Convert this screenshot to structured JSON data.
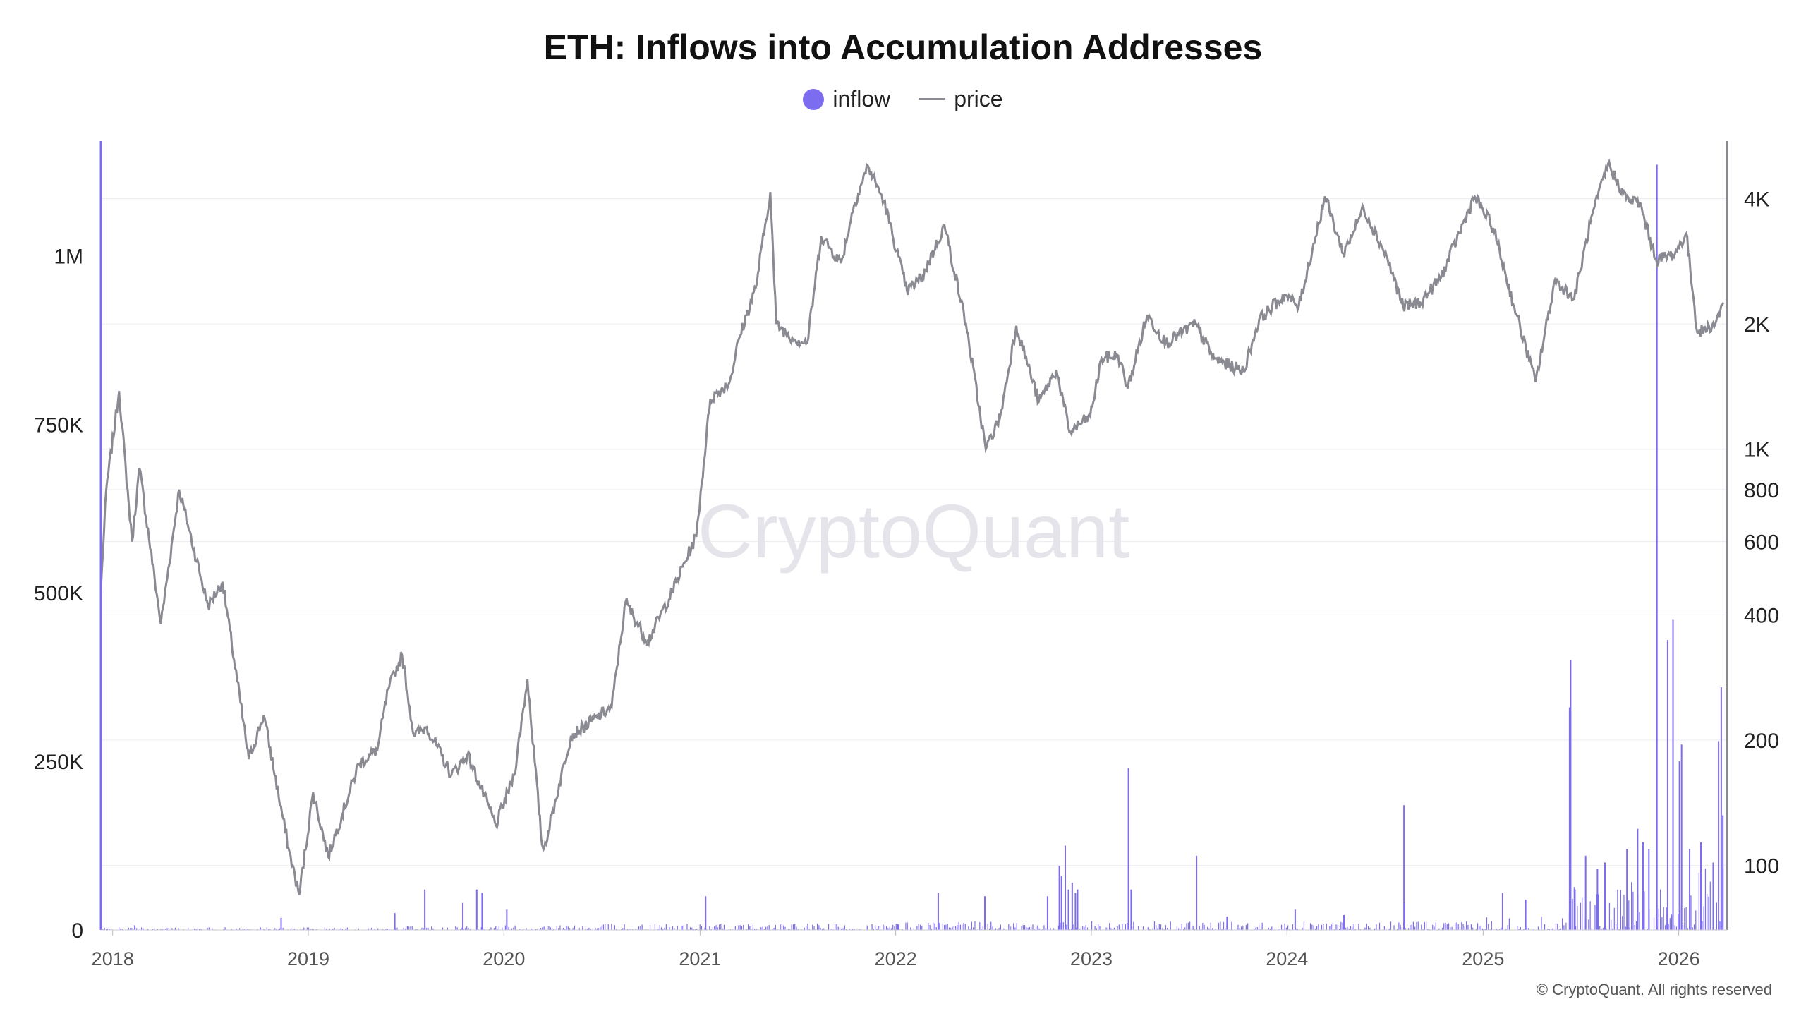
{
  "chart_data": {
    "type": "bar+line",
    "title": "ETH: Inflows into Accumulation Addresses",
    "watermark": "CryptoQuant",
    "footer": "© CryptoQuant. All rights reserved",
    "legend": {
      "placement": "top-center",
      "items": [
        {
          "name": "inflow",
          "type": "bar",
          "color": "#7b6cf0"
        },
        {
          "name": "price",
          "type": "line",
          "color": "#8a8a93"
        }
      ]
    },
    "x_axis": {
      "type": "date",
      "range": [
        "2017-12-10",
        "2026-04-01"
      ],
      "ticks": [
        {
          "date": "2018-01-01",
          "label": "2018"
        },
        {
          "date": "2019-01-01",
          "label": "2019"
        },
        {
          "date": "2020-01-01",
          "label": "2020"
        },
        {
          "date": "2021-01-01",
          "label": "2021"
        },
        {
          "date": "2022-01-01",
          "label": "2022"
        },
        {
          "date": "2023-01-01",
          "label": "2023"
        },
        {
          "date": "2024-01-01",
          "label": "2024"
        },
        {
          "date": "2025-01-01",
          "label": "2025"
        },
        {
          "date": "2026-01-01",
          "label": "2026"
        }
      ]
    },
    "y_left": {
      "name": "inflow",
      "range": [
        0,
        1170000
      ],
      "ticks": [
        {
          "value": 0,
          "label": "0"
        },
        {
          "value": 250000,
          "label": "250K"
        },
        {
          "value": 500000,
          "label": "500K"
        },
        {
          "value": 750000,
          "label": "750K"
        },
        {
          "value": 1000000,
          "label": "1M"
        }
      ]
    },
    "y_right": {
      "name": "price",
      "scale": "log",
      "range": [
        70,
        5500
      ],
      "ticks": [
        {
          "value": 100,
          "label": "100"
        },
        {
          "value": 200,
          "label": "200"
        },
        {
          "value": 400,
          "label": "400"
        },
        {
          "value": 600,
          "label": "600"
        },
        {
          "value": 800,
          "label": "800"
        },
        {
          "value": 1000,
          "label": "1K"
        },
        {
          "value": 2000,
          "label": "2K"
        },
        {
          "value": 4000,
          "label": "4K"
        }
      ]
    },
    "grid": true,
    "price_series": [
      [
        "2017-12-10",
        460
      ],
      [
        "2017-12-20",
        800
      ],
      [
        "2018-01-13",
        1380
      ],
      [
        "2018-02-06",
        600
      ],
      [
        "2018-02-20",
        900
      ],
      [
        "2018-04-01",
        380
      ],
      [
        "2018-05-05",
        800
      ],
      [
        "2018-06-28",
        420
      ],
      [
        "2018-07-25",
        480
      ],
      [
        "2018-09-12",
        180
      ],
      [
        "2018-10-10",
        230
      ],
      [
        "2018-11-25",
        110
      ],
      [
        "2018-12-15",
        85
      ],
      [
        "2019-01-10",
        150
      ],
      [
        "2019-02-07",
        105
      ],
      [
        "2019-04-05",
        175
      ],
      [
        "2019-05-10",
        190
      ],
      [
        "2019-05-30",
        265
      ],
      [
        "2019-06-25",
        320
      ],
      [
        "2019-07-17",
        205
      ],
      [
        "2019-08-10",
        215
      ],
      [
        "2019-09-25",
        165
      ],
      [
        "2019-10-25",
        185
      ],
      [
        "2019-12-17",
        125
      ],
      [
        "2020-01-20",
        165
      ],
      [
        "2020-02-14",
        280
      ],
      [
        "2020-03-12",
        112
      ],
      [
        "2020-03-16",
        110
      ],
      [
        "2020-05-05",
        205
      ],
      [
        "2020-07-20",
        240
      ],
      [
        "2020-08-15",
        430
      ],
      [
        "2020-09-25",
        345
      ],
      [
        "2020-11-10",
        455
      ],
      [
        "2020-12-25",
        620
      ],
      [
        "2021-01-20",
        1320
      ],
      [
        "2021-02-25",
        1450
      ],
      [
        "2021-03-15",
        1850
      ],
      [
        "2021-04-15",
        2450
      ],
      [
        "2021-05-12",
        4150
      ],
      [
        "2021-05-23",
        2000
      ],
      [
        "2021-06-22",
        1850
      ],
      [
        "2021-07-20",
        1800
      ],
      [
        "2021-08-15",
        3250
      ],
      [
        "2021-09-21",
        2800
      ],
      [
        "2021-10-15",
        3850
      ],
      [
        "2021-11-10",
        4800
      ],
      [
        "2021-12-10",
        3950
      ],
      [
        "2022-01-22",
        2400
      ],
      [
        "2022-02-20",
        2600
      ],
      [
        "2022-04-02",
        3450
      ],
      [
        "2022-05-12",
        2000
      ],
      [
        "2022-06-18",
        1000
      ],
      [
        "2022-07-15",
        1200
      ],
      [
        "2022-08-14",
        1980
      ],
      [
        "2022-09-25",
        1300
      ],
      [
        "2022-10-28",
        1550
      ],
      [
        "2022-11-21",
        1100
      ],
      [
        "2022-12-30",
        1200
      ],
      [
        "2023-01-20",
        1650
      ],
      [
        "2023-02-20",
        1680
      ],
      [
        "2023-03-10",
        1400
      ],
      [
        "2023-04-15",
        2100
      ],
      [
        "2023-05-20",
        1800
      ],
      [
        "2023-07-14",
        2000
      ],
      [
        "2023-08-18",
        1650
      ],
      [
        "2023-10-12",
        1540
      ],
      [
        "2023-11-10",
        2050
      ],
      [
        "2023-12-28",
        2350
      ],
      [
        "2024-01-23",
        2200
      ],
      [
        "2024-03-12",
        4050
      ],
      [
        "2024-04-15",
        2950
      ],
      [
        "2024-05-23",
        3800
      ],
      [
        "2024-07-05",
        2900
      ],
      [
        "2024-08-05",
        2200
      ],
      [
        "2024-09-06",
        2250
      ],
      [
        "2024-10-15",
        2600
      ],
      [
        "2024-12-16",
        4050
      ],
      [
        "2025-01-20",
        3400
      ],
      [
        "2025-02-28",
        2200
      ],
      [
        "2025-04-09",
        1450
      ],
      [
        "2025-05-15",
        2550
      ],
      [
        "2025-06-20",
        2300
      ],
      [
        "2025-07-20",
        3500
      ],
      [
        "2025-08-22",
        4850
      ],
      [
        "2025-09-25",
        4000
      ],
      [
        "2025-10-20",
        3900
      ],
      [
        "2025-11-20",
        2850
      ],
      [
        "2025-12-25",
        2950
      ],
      [
        "2026-01-15",
        3300
      ],
      [
        "2026-02-05",
        1900
      ],
      [
        "2026-03-10",
        2000
      ],
      [
        "2026-03-25",
        2250
      ]
    ],
    "inflow_spikes": [
      [
        "2018-02-10",
        7000
      ],
      [
        "2018-11-10",
        18000
      ],
      [
        "2019-06-10",
        25000
      ],
      [
        "2019-08-05",
        60000
      ],
      [
        "2019-10-15",
        40000
      ],
      [
        "2019-11-10",
        60000
      ],
      [
        "2019-11-20",
        55000
      ],
      [
        "2020-01-05",
        30000
      ],
      [
        "2021-01-10",
        50000
      ],
      [
        "2022-01-05",
        8000
      ],
      [
        "2022-03-20",
        55000
      ],
      [
        "2022-06-15",
        50000
      ],
      [
        "2022-10-10",
        50000
      ],
      [
        "2022-11-01",
        95000
      ],
      [
        "2022-11-05",
        80000
      ],
      [
        "2022-11-12",
        125000
      ],
      [
        "2022-11-18",
        60000
      ],
      [
        "2022-11-25",
        70000
      ],
      [
        "2022-12-01",
        55000
      ],
      [
        "2022-12-05",
        60000
      ],
      [
        "2023-03-10",
        240000
      ],
      [
        "2023-03-15",
        60000
      ],
      [
        "2023-07-15",
        110000
      ],
      [
        "2023-09-10",
        20000
      ],
      [
        "2024-01-15",
        30000
      ],
      [
        "2024-04-15",
        22000
      ],
      [
        "2024-08-05",
        185000
      ],
      [
        "2024-08-06",
        40000
      ],
      [
        "2025-02-05",
        55000
      ],
      [
        "2025-03-20",
        45000
      ],
      [
        "2025-06-10",
        330000
      ],
      [
        "2025-06-12",
        400000
      ],
      [
        "2025-06-20",
        60000
      ],
      [
        "2025-07-10",
        110000
      ],
      [
        "2025-08-01",
        90000
      ],
      [
        "2025-08-15",
        100000
      ],
      [
        "2025-09-25",
        120000
      ],
      [
        "2025-10-15",
        150000
      ],
      [
        "2025-10-25",
        130000
      ],
      [
        "2025-11-05",
        120000
      ],
      [
        "2025-11-20",
        1135000
      ],
      [
        "2025-12-10",
        430000
      ],
      [
        "2025-12-20",
        460000
      ],
      [
        "2026-01-01",
        250000
      ],
      [
        "2026-01-05",
        275000
      ],
      [
        "2026-01-20",
        120000
      ],
      [
        "2026-02-10",
        130000
      ],
      [
        "2026-03-05",
        100000
      ],
      [
        "2026-03-15",
        280000
      ],
      [
        "2026-03-20",
        360000
      ],
      [
        "2026-03-23",
        170000
      ]
    ],
    "inflow_baseline": [
      {
        "from": "2017-12-10",
        "to": "2019-06-30",
        "level": 2500
      },
      {
        "from": "2019-07-01",
        "to": "2020-06-30",
        "level": 4500
      },
      {
        "from": "2020-07-01",
        "to": "2021-12-31",
        "level": 6000
      },
      {
        "from": "2022-01-01",
        "to": "2022-12-31",
        "level": 8000
      },
      {
        "from": "2023-01-01",
        "to": "2024-12-31",
        "level": 8000
      },
      {
        "from": "2025-01-01",
        "to": "2025-05-31",
        "level": 14000
      },
      {
        "from": "2025-06-01",
        "to": "2025-09-30",
        "level": 40000
      },
      {
        "from": "2025-10-01",
        "to": "2026-03-25",
        "level": 60000
      }
    ]
  }
}
